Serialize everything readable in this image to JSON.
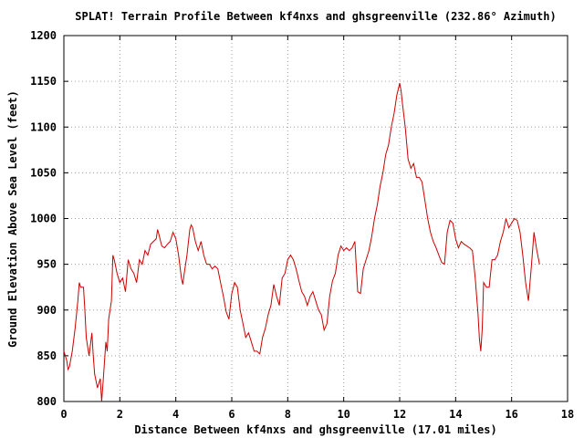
{
  "chart_data": {
    "type": "line",
    "title": "SPLAT! Terrain Profile Between kf4nxs and ghsgreenville (232.86° Azimuth)",
    "xlabel": "Distance Between kf4nxs and ghsgreenville (17.01 miles)",
    "ylabel": "Ground Elevation Above Sea Level (feet)",
    "xlim": [
      0,
      18
    ],
    "ylim": [
      800,
      1200
    ],
    "x_ticks": [
      0,
      2,
      4,
      6,
      8,
      10,
      12,
      14,
      16,
      18
    ],
    "y_ticks": [
      800,
      850,
      900,
      950,
      1000,
      1050,
      1100,
      1150,
      1200
    ],
    "x_tick_labels": [
      "0",
      "2",
      "4",
      "6",
      "8",
      "10",
      "12",
      "14",
      "16",
      "18"
    ],
    "y_tick_labels": [
      "800",
      "850",
      "900",
      "950",
      "1000",
      "1050",
      "1100",
      "1150",
      "1200"
    ],
    "grid": true,
    "legend": "none",
    "series": [
      {
        "color": "#cc0000",
        "points": [
          [
            0.0,
            855
          ],
          [
            0.1,
            845
          ],
          [
            0.15,
            835
          ],
          [
            0.2,
            838
          ],
          [
            0.3,
            855
          ],
          [
            0.4,
            880
          ],
          [
            0.5,
            910
          ],
          [
            0.55,
            930
          ],
          [
            0.6,
            925
          ],
          [
            0.7,
            925
          ],
          [
            0.75,
            900
          ],
          [
            0.8,
            870
          ],
          [
            0.9,
            850
          ],
          [
            1.0,
            875
          ],
          [
            1.05,
            850
          ],
          [
            1.1,
            830
          ],
          [
            1.2,
            815
          ],
          [
            1.3,
            825
          ],
          [
            1.35,
            800
          ],
          [
            1.4,
            820
          ],
          [
            1.5,
            865
          ],
          [
            1.55,
            855
          ],
          [
            1.6,
            890
          ],
          [
            1.7,
            910
          ],
          [
            1.75,
            960
          ],
          [
            1.8,
            955
          ],
          [
            1.9,
            940
          ],
          [
            2.0,
            930
          ],
          [
            2.1,
            935
          ],
          [
            2.2,
            920
          ],
          [
            2.3,
            955
          ],
          [
            2.4,
            945
          ],
          [
            2.5,
            940
          ],
          [
            2.6,
            930
          ],
          [
            2.7,
            955
          ],
          [
            2.8,
            950
          ],
          [
            2.9,
            965
          ],
          [
            3.0,
            960
          ],
          [
            3.1,
            972
          ],
          [
            3.2,
            975
          ],
          [
            3.3,
            978
          ],
          [
            3.35,
            988
          ],
          [
            3.4,
            982
          ],
          [
            3.5,
            970
          ],
          [
            3.6,
            968
          ],
          [
            3.7,
            972
          ],
          [
            3.8,
            975
          ],
          [
            3.9,
            985
          ],
          [
            4.0,
            978
          ],
          [
            4.1,
            960
          ],
          [
            4.2,
            935
          ],
          [
            4.25,
            928
          ],
          [
            4.3,
            940
          ],
          [
            4.4,
            960
          ],
          [
            4.5,
            988
          ],
          [
            4.55,
            993
          ],
          [
            4.6,
            990
          ],
          [
            4.7,
            975
          ],
          [
            4.8,
            965
          ],
          [
            4.9,
            975
          ],
          [
            5.0,
            960
          ],
          [
            5.1,
            950
          ],
          [
            5.2,
            950
          ],
          [
            5.3,
            945
          ],
          [
            5.4,
            948
          ],
          [
            5.5,
            945
          ],
          [
            5.6,
            930
          ],
          [
            5.7,
            915
          ],
          [
            5.8,
            898
          ],
          [
            5.9,
            890
          ],
          [
            6.0,
            918
          ],
          [
            6.1,
            930
          ],
          [
            6.2,
            925
          ],
          [
            6.3,
            900
          ],
          [
            6.4,
            885
          ],
          [
            6.5,
            870
          ],
          [
            6.6,
            875
          ],
          [
            6.7,
            865
          ],
          [
            6.8,
            855
          ],
          [
            6.9,
            855
          ],
          [
            7.0,
            852
          ],
          [
            7.1,
            870
          ],
          [
            7.2,
            880
          ],
          [
            7.3,
            895
          ],
          [
            7.4,
            905
          ],
          [
            7.5,
            928
          ],
          [
            7.6,
            915
          ],
          [
            7.7,
            905
          ],
          [
            7.8,
            935
          ],
          [
            7.9,
            940
          ],
          [
            8.0,
            955
          ],
          [
            8.1,
            960
          ],
          [
            8.2,
            955
          ],
          [
            8.3,
            945
          ],
          [
            8.4,
            932
          ],
          [
            8.5,
            920
          ],
          [
            8.6,
            915
          ],
          [
            8.7,
            905
          ],
          [
            8.8,
            915
          ],
          [
            8.9,
            920
          ],
          [
            9.0,
            910
          ],
          [
            9.1,
            900
          ],
          [
            9.2,
            895
          ],
          [
            9.3,
            878
          ],
          [
            9.4,
            885
          ],
          [
            9.5,
            915
          ],
          [
            9.6,
            932
          ],
          [
            9.7,
            940
          ],
          [
            9.8,
            960
          ],
          [
            9.9,
            970
          ],
          [
            10.0,
            965
          ],
          [
            10.1,
            968
          ],
          [
            10.2,
            965
          ],
          [
            10.3,
            968
          ],
          [
            10.4,
            975
          ],
          [
            10.5,
            920
          ],
          [
            10.6,
            918
          ],
          [
            10.7,
            945
          ],
          [
            10.8,
            955
          ],
          [
            10.9,
            965
          ],
          [
            11.0,
            980
          ],
          [
            11.1,
            1000
          ],
          [
            11.2,
            1015
          ],
          [
            11.3,
            1035
          ],
          [
            11.4,
            1050
          ],
          [
            11.5,
            1070
          ],
          [
            11.6,
            1080
          ],
          [
            11.7,
            1100
          ],
          [
            11.8,
            1115
          ],
          [
            11.9,
            1135
          ],
          [
            12.0,
            1148
          ],
          [
            12.05,
            1140
          ],
          [
            12.1,
            1125
          ],
          [
            12.2,
            1100
          ],
          [
            12.3,
            1065
          ],
          [
            12.4,
            1055
          ],
          [
            12.5,
            1060
          ],
          [
            12.6,
            1045
          ],
          [
            12.7,
            1045
          ],
          [
            12.8,
            1040
          ],
          [
            12.9,
            1020
          ],
          [
            13.0,
            1000
          ],
          [
            13.1,
            985
          ],
          [
            13.2,
            975
          ],
          [
            13.3,
            968
          ],
          [
            13.4,
            960
          ],
          [
            13.5,
            952
          ],
          [
            13.6,
            950
          ],
          [
            13.7,
            985
          ],
          [
            13.8,
            998
          ],
          [
            13.9,
            995
          ],
          [
            14.0,
            978
          ],
          [
            14.1,
            968
          ],
          [
            14.2,
            975
          ],
          [
            14.3,
            972
          ],
          [
            14.4,
            970
          ],
          [
            14.5,
            968
          ],
          [
            14.6,
            965
          ],
          [
            14.7,
            935
          ],
          [
            14.8,
            895
          ],
          [
            14.85,
            868
          ],
          [
            14.9,
            855
          ],
          [
            14.95,
            880
          ],
          [
            15.0,
            930
          ],
          [
            15.1,
            925
          ],
          [
            15.2,
            925
          ],
          [
            15.3,
            955
          ],
          [
            15.4,
            955
          ],
          [
            15.5,
            960
          ],
          [
            15.6,
            975
          ],
          [
            15.7,
            985
          ],
          [
            15.8,
            1000
          ],
          [
            15.9,
            990
          ],
          [
            16.0,
            995
          ],
          [
            16.1,
            1000
          ],
          [
            16.2,
            998
          ],
          [
            16.3,
            985
          ],
          [
            16.4,
            960
          ],
          [
            16.5,
            930
          ],
          [
            16.6,
            910
          ],
          [
            16.7,
            945
          ],
          [
            16.8,
            985
          ],
          [
            16.9,
            965
          ],
          [
            17.0,
            950
          ]
        ]
      }
    ]
  }
}
